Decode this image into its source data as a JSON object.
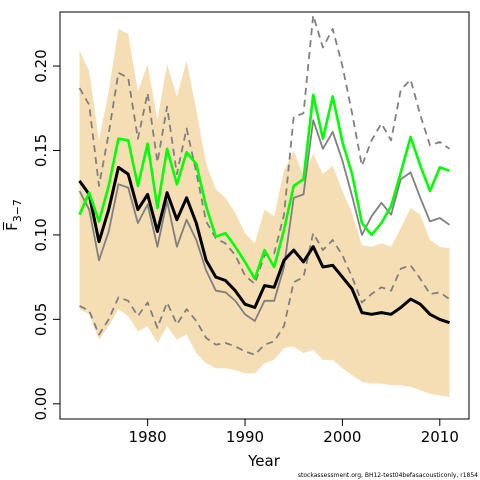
{
  "chart_data": {
    "type": "line",
    "xlabel": "Year",
    "ylabel": "F̅",
    "ylabel_sub": "3−7",
    "footnote": "stockassessment.org, BH12-test04befasacousticonly, r1854",
    "xlim": [
      1971,
      2013
    ],
    "ylim": [
      -0.009,
      0.232
    ],
    "xticks": [
      1980,
      1990,
      2000,
      2010
    ],
    "xtick_labels": [
      "1980",
      "1990",
      "2000",
      "2010"
    ],
    "yticks": [
      0.0,
      0.05,
      0.1,
      0.15,
      0.2
    ],
    "ytick_labels": [
      "0.00",
      "0.05",
      "0.10",
      "0.15",
      "0.20"
    ],
    "grid": false,
    "colors": {
      "band": "#f5deb3",
      "black_line": "#000000",
      "green_line": "#00ff00",
      "gray": "#808080"
    },
    "x": [
      1973,
      1974,
      1975,
      1976,
      1977,
      1978,
      1979,
      1980,
      1981,
      1982,
      1983,
      1984,
      1985,
      1986,
      1987,
      1988,
      1989,
      1990,
      1991,
      1992,
      1993,
      1994,
      1995,
      1996,
      1997,
      1998,
      1999,
      2000,
      2001,
      2002,
      2003,
      2004,
      2005,
      2006,
      2007,
      2008,
      2009,
      2010,
      2011
    ],
    "series": [
      {
        "role": "band_upper",
        "values": [
          0.209,
          0.197,
          0.156,
          0.185,
          0.222,
          0.219,
          0.185,
          0.201,
          0.168,
          0.201,
          0.182,
          0.203,
          0.174,
          0.142,
          0.127,
          0.122,
          0.113,
          0.101,
          0.095,
          0.115,
          0.111,
          0.138,
          0.15,
          0.135,
          0.148,
          0.136,
          0.141,
          0.126,
          0.113,
          0.094,
          0.093,
          0.095,
          0.093,
          0.104,
          0.116,
          0.112,
          0.097,
          0.093,
          0.092
        ]
      },
      {
        "role": "band_lower",
        "values": [
          0.056,
          0.053,
          0.038,
          0.046,
          0.056,
          0.052,
          0.043,
          0.046,
          0.036,
          0.046,
          0.038,
          0.041,
          0.03,
          0.024,
          0.021,
          0.021,
          0.02,
          0.018,
          0.018,
          0.024,
          0.026,
          0.033,
          0.034,
          0.03,
          0.032,
          0.026,
          0.026,
          0.021,
          0.017,
          0.013,
          0.012,
          0.012,
          0.011,
          0.011,
          0.01,
          0.008,
          0.006,
          0.005,
          0.004
        ]
      },
      {
        "role": "estimate",
        "color": "black",
        "values": [
          0.132,
          0.124,
          0.096,
          0.115,
          0.14,
          0.136,
          0.115,
          0.124,
          0.102,
          0.125,
          0.109,
          0.122,
          0.107,
          0.085,
          0.075,
          0.073,
          0.067,
          0.059,
          0.057,
          0.07,
          0.069,
          0.085,
          0.091,
          0.084,
          0.093,
          0.081,
          0.082,
          0.075,
          0.068,
          0.054,
          0.053,
          0.054,
          0.053,
          0.057,
          0.062,
          0.059,
          0.053,
          0.05,
          0.048
        ]
      },
      {
        "role": "gray_solid_upper",
        "color": "gray",
        "values": [
          0.126,
          0.115,
          0.085,
          0.102,
          0.13,
          0.128,
          0.107,
          0.118,
          0.093,
          0.12,
          0.093,
          0.109,
          0.097,
          0.079,
          0.067,
          0.066,
          0.061,
          0.053,
          0.049,
          0.061,
          0.061,
          0.081,
          0.122,
          0.124,
          0.168,
          0.151,
          0.161,
          0.144,
          0.123,
          0.1,
          0.111,
          0.119,
          0.112,
          0.133,
          0.137,
          0.122,
          0.108,
          0.11,
          0.106
        ]
      },
      {
        "role": "gray_dashed_upper",
        "color": "gray",
        "values": [
          0.187,
          0.177,
          0.129,
          0.16,
          0.196,
          0.193,
          0.157,
          0.184,
          0.143,
          0.176,
          0.136,
          0.163,
          0.137,
          0.108,
          0.098,
          0.095,
          0.088,
          0.076,
          0.071,
          0.088,
          0.089,
          0.112,
          0.17,
          0.172,
          0.23,
          0.211,
          0.222,
          0.2,
          0.172,
          0.141,
          0.156,
          0.166,
          0.156,
          0.186,
          0.192,
          0.171,
          0.153,
          0.155,
          0.151
        ]
      },
      {
        "role": "gray_dashed_lower",
        "color": "gray",
        "values": [
          0.058,
          0.055,
          0.041,
          0.05,
          0.063,
          0.061,
          0.052,
          0.06,
          0.045,
          0.06,
          0.047,
          0.056,
          0.049,
          0.039,
          0.035,
          0.036,
          0.034,
          0.031,
          0.029,
          0.035,
          0.037,
          0.046,
          0.072,
          0.075,
          0.101,
          0.091,
          0.097,
          0.088,
          0.075,
          0.06,
          0.065,
          0.069,
          0.067,
          0.08,
          0.082,
          0.074,
          0.065,
          0.066,
          0.062
        ]
      },
      {
        "role": "green_line",
        "color": "green",
        "values": [
          0.112,
          0.125,
          0.108,
          0.129,
          0.157,
          0.156,
          0.129,
          0.154,
          0.116,
          0.151,
          0.13,
          0.149,
          0.142,
          0.117,
          0.099,
          0.101,
          0.093,
          0.084,
          0.074,
          0.091,
          0.081,
          0.103,
          0.129,
          0.133,
          0.183,
          0.157,
          0.182,
          0.155,
          0.136,
          0.107,
          0.1,
          0.107,
          0.117,
          0.137,
          0.158,
          0.141,
          0.126,
          0.14,
          0.138
        ]
      }
    ]
  }
}
